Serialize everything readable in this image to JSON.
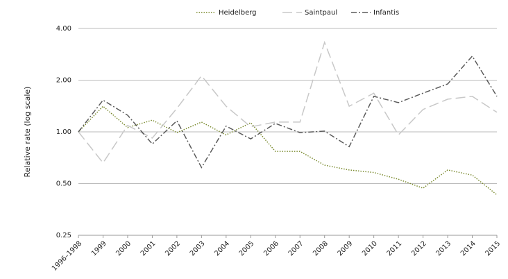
{
  "chart_data": {
    "type": "line",
    "y_label": "Relative rate (log scale)",
    "log_scale": true,
    "grid": true,
    "legend": "top",
    "categories": [
      "1996–1998",
      "1999",
      "2000",
      "2001",
      "2002",
      "2003",
      "2004",
      "2005",
      "2006",
      "2007",
      "2008",
      "2009",
      "2010",
      "2011",
      "2012",
      "2013",
      "2014",
      "2015"
    ],
    "series": [
      {
        "name": "Heidelberg",
        "color": "#7a8a2e",
        "dash": "1.5,2",
        "values": [
          1.0,
          1.41,
          1.06,
          1.17,
          0.99,
          1.14,
          0.96,
          1.13,
          0.77,
          0.77,
          0.64,
          0.6,
          0.58,
          0.53,
          0.47,
          0.6,
          0.56,
          0.43
        ]
      },
      {
        "name": "Saintpaul",
        "color": "#c8c8c8",
        "dash": "14,6",
        "values": [
          1.0,
          0.66,
          1.09,
          0.92,
          1.37,
          2.12,
          1.41,
          1.07,
          1.14,
          1.14,
          3.32,
          1.41,
          1.68,
          0.96,
          1.35,
          1.55,
          1.61,
          1.3
        ]
      },
      {
        "name": "Infantis",
        "color": "#5a5a5a",
        "dash": "8,3,2,3",
        "values": [
          1.0,
          1.53,
          1.25,
          0.85,
          1.16,
          0.62,
          1.08,
          0.91,
          1.12,
          0.99,
          1.01,
          0.82,
          1.61,
          1.48,
          1.68,
          1.9,
          2.76,
          1.61
        ]
      }
    ],
    "ylim": [
      0.25,
      4
    ],
    "yticks": [
      {
        "value": 0.25,
        "label": "0.25"
      },
      {
        "value": 0.5,
        "label": "0.50"
      },
      {
        "value": 1,
        "label": "1.00"
      },
      {
        "value": 2,
        "label": "2.00"
      },
      {
        "value": 4,
        "label": "4.00"
      }
    ]
  }
}
